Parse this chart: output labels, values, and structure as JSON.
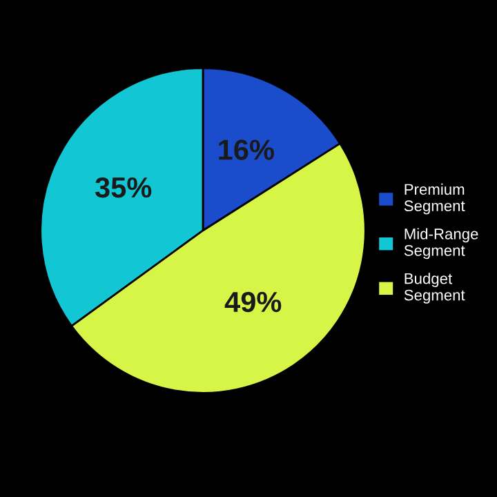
{
  "chart_data": {
    "type": "pie",
    "categories": [
      "Premium Segment",
      "Mid-Range Segment",
      "Budget Segment"
    ],
    "values": [
      16,
      35,
      49
    ],
    "colors": [
      "#1a4ccc",
      "#12c6d4",
      "#d6f547"
    ],
    "value_labels": [
      "16%",
      "35%",
      "49%"
    ],
    "legend": "right"
  }
}
